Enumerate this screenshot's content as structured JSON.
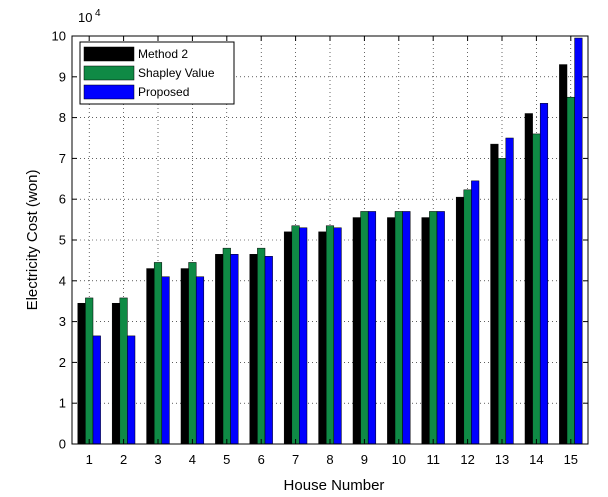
{
  "chart_data": {
    "type": "bar",
    "xlabel": "House Number",
    "ylabel": "Electricity Cost (won)",
    "categories": [
      "1",
      "2",
      "3",
      "4",
      "5",
      "6",
      "7",
      "8",
      "9",
      "10",
      "11",
      "12",
      "13",
      "14",
      "15"
    ],
    "ylim": [
      0,
      100000
    ],
    "ytick_labels": [
      "0",
      "1",
      "2",
      "3",
      "4",
      "5",
      "6",
      "7",
      "8",
      "9",
      "10"
    ],
    "y_exponent_base": "10",
    "y_exponent_power": "4",
    "grid": true,
    "grid_style": "dotted",
    "legend_position": "top-left",
    "series": [
      {
        "name": "Method 2",
        "color": "#000000",
        "values": [
          34500,
          34500,
          43000,
          43000,
          46500,
          46500,
          52000,
          52000,
          55500,
          55500,
          55500,
          60500,
          73500,
          81000,
          93000
        ]
      },
      {
        "name": "Shapley Value",
        "color": "#0f8a45",
        "values": [
          35800,
          35800,
          44500,
          44500,
          48000,
          48000,
          53500,
          53500,
          57000,
          57000,
          57000,
          62300,
          70000,
          76000,
          85000
        ]
      },
      {
        "name": "Proposed",
        "color": "#0000ff",
        "values": [
          26500,
          26500,
          41000,
          41000,
          46500,
          46000,
          53000,
          53000,
          57000,
          57000,
          57000,
          64500,
          75000,
          83500,
          99500
        ]
      }
    ]
  }
}
